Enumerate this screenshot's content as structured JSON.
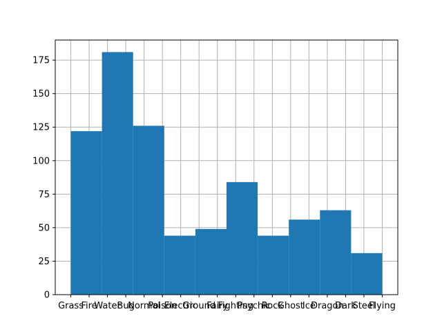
{
  "chart_data": {
    "type": "bar",
    "title": "",
    "xlabel": "",
    "ylabel": "",
    "categories": [
      "Grass",
      "Fire",
      "Water",
      "Bug",
      "Normal",
      "Poison",
      "Electric",
      "Ground",
      "Fairy",
      "Fighting",
      "Psychic",
      "Rock",
      "Ghost",
      "Ice",
      "Dragon",
      "Dark",
      "Steel",
      "Flying"
    ],
    "xlim": [
      -0.85,
      17.85
    ],
    "ylim": [
      0,
      190
    ],
    "yticks": [
      0,
      25,
      50,
      75,
      100,
      125,
      150,
      175
    ],
    "grid": true,
    "legend": "none",
    "bins": [
      {
        "start": 0.0,
        "end": 1.7,
        "value": 122
      },
      {
        "start": 1.7,
        "end": 3.4,
        "value": 181
      },
      {
        "start": 3.4,
        "end": 5.1,
        "value": 126
      },
      {
        "start": 5.1,
        "end": 6.8,
        "value": 44
      },
      {
        "start": 6.8,
        "end": 8.5,
        "value": 49
      },
      {
        "start": 8.5,
        "end": 10.2,
        "value": 84
      },
      {
        "start": 10.2,
        "end": 11.9,
        "value": 44
      },
      {
        "start": 11.9,
        "end": 13.6,
        "value": 56
      },
      {
        "start": 13.6,
        "end": 15.3,
        "value": 63
      },
      {
        "start": 15.3,
        "end": 17.0,
        "value": 31
      }
    ],
    "colors": {
      "bar": "#1f77b4",
      "grid": "#b0b0b0",
      "axis": "#000000"
    }
  }
}
